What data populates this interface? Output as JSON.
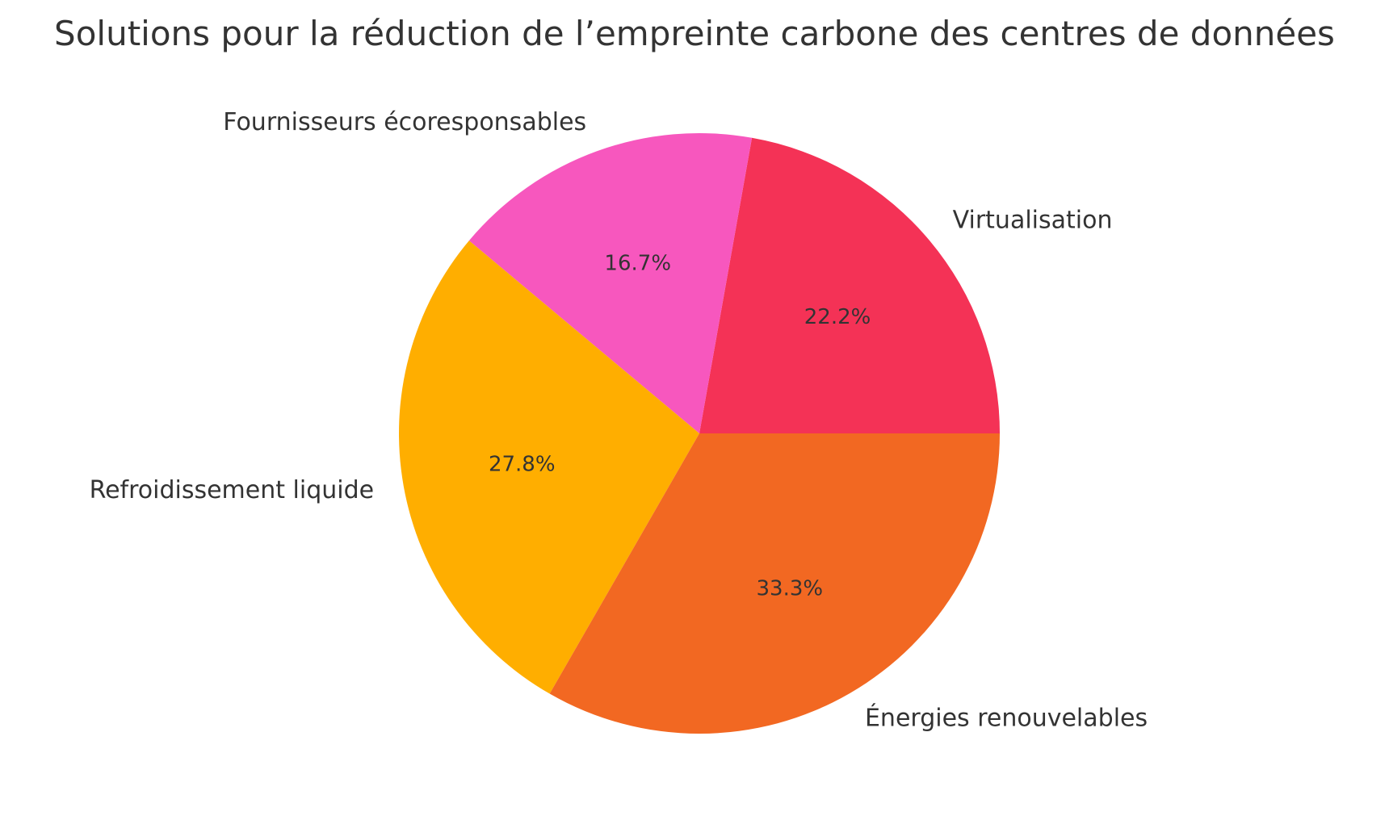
{
  "chart_data": {
    "type": "pie",
    "title": "Solutions pour la réduction de l’empreinte carbone des centres de données",
    "start_angle_deg": 0,
    "direction": "counterclockwise",
    "legend": "none",
    "slices": [
      {
        "label": "Virtualisation",
        "value": 22.2,
        "pct_label": "22.2%",
        "color": "#F43256"
      },
      {
        "label": "Fournisseurs écoresponsables",
        "value": 16.7,
        "pct_label": "16.7%",
        "color": "#F757BE"
      },
      {
        "label": "Refroidissement liquide",
        "value": 27.8,
        "pct_label": "27.8%",
        "color": "#FFAE00"
      },
      {
        "label": "Énergies renouvelables",
        "value": 33.3,
        "pct_label": "33.3%",
        "color": "#F26822"
      }
    ]
  }
}
